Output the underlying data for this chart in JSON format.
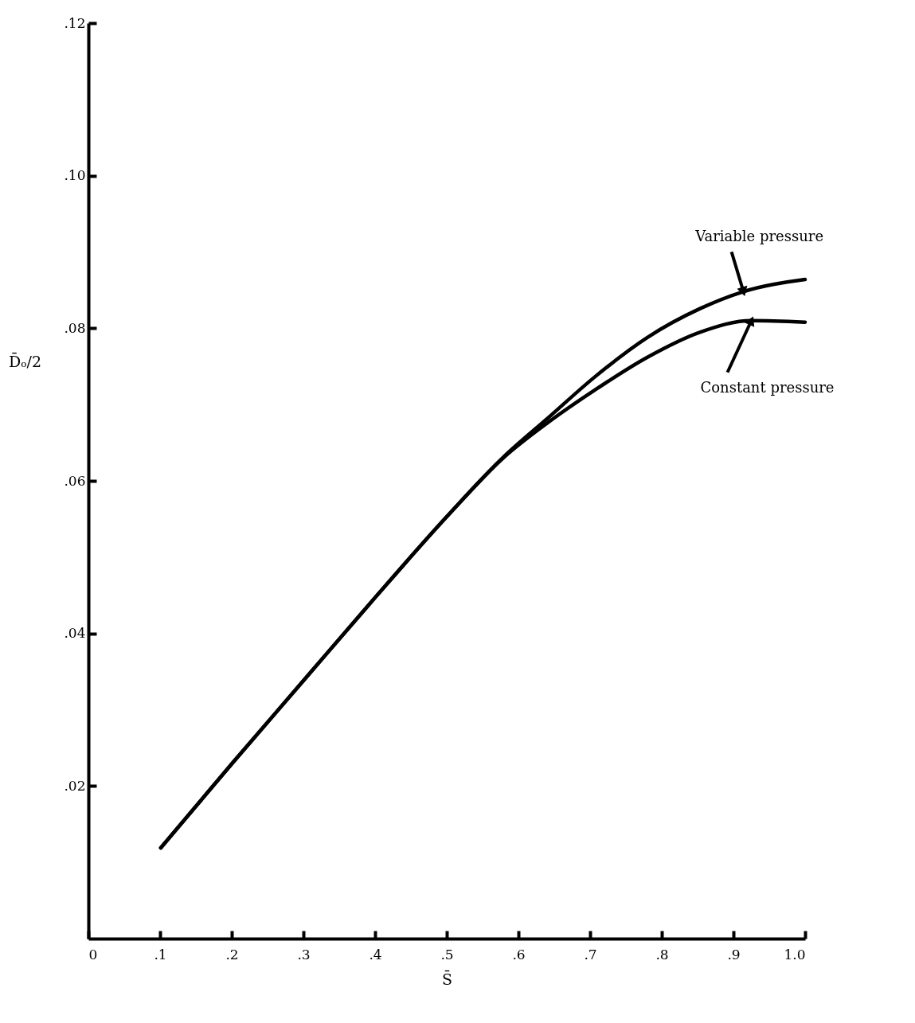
{
  "chart_data": {
    "type": "line",
    "xlabel": "S̄",
    "ylabel": "D̄ₒ/2",
    "xlim": [
      0,
      1.0
    ],
    "ylim": [
      0,
      0.12
    ],
    "xticks": [
      0,
      {
        "value": 0.1,
        "label": ".1"
      },
      {
        "value": 0.2,
        "label": ".2"
      },
      {
        "value": 0.3,
        "label": ".3"
      },
      {
        "value": 0.4,
        "label": ".4"
      },
      {
        "value": 0.5,
        "label": ".5"
      },
      {
        "value": 0.6,
        "label": ".6"
      },
      {
        "value": 0.7,
        "label": ".7"
      },
      {
        "value": 0.8,
        "label": ".8"
      },
      {
        "value": 0.9,
        "label": ".9"
      },
      {
        "value": 1.0,
        "label": "1.0"
      }
    ],
    "yticks": [
      {
        "value": 0.02,
        "label": ".02"
      },
      {
        "value": 0.04,
        "label": ".04"
      },
      {
        "value": 0.06,
        "label": ".06"
      },
      {
        "value": 0.08,
        "label": ".08"
      },
      {
        "value": 0.1,
        "label": ".10"
      },
      {
        "value": 0.12,
        "label": ".12"
      }
    ],
    "grid": false,
    "legend": false,
    "series": [
      {
        "color": "#000000",
        "x": [
          0.101,
          0.2,
          0.3,
          0.4,
          0.5,
          0.58,
          0.642,
          0.705,
          0.78,
          0.854,
          0.914,
          1.0
        ],
        "values": [
          0.0119,
          0.0229,
          0.0338,
          0.0447,
          0.0553,
          0.0632,
          0.0683,
          0.0735,
          0.0788,
          0.0826,
          0.0848,
          0.0864
        ]
      },
      {
        "color": "#000000",
        "x": [
          0.101,
          0.2,
          0.3,
          0.4,
          0.5,
          0.58,
          0.642,
          0.705,
          0.78,
          0.854,
          0.925,
          1.0
        ],
        "values": [
          0.0119,
          0.0229,
          0.0338,
          0.0447,
          0.0553,
          0.0631,
          0.0677,
          0.0718,
          0.0762,
          0.0795,
          0.081,
          0.0808
        ]
      }
    ],
    "annotations": [
      {
        "text": "Variable pressure",
        "x": 0.914,
        "y": 0.0848
      },
      {
        "text": "Constant pressure",
        "x": 0.925,
        "y": 0.081
      }
    ]
  }
}
